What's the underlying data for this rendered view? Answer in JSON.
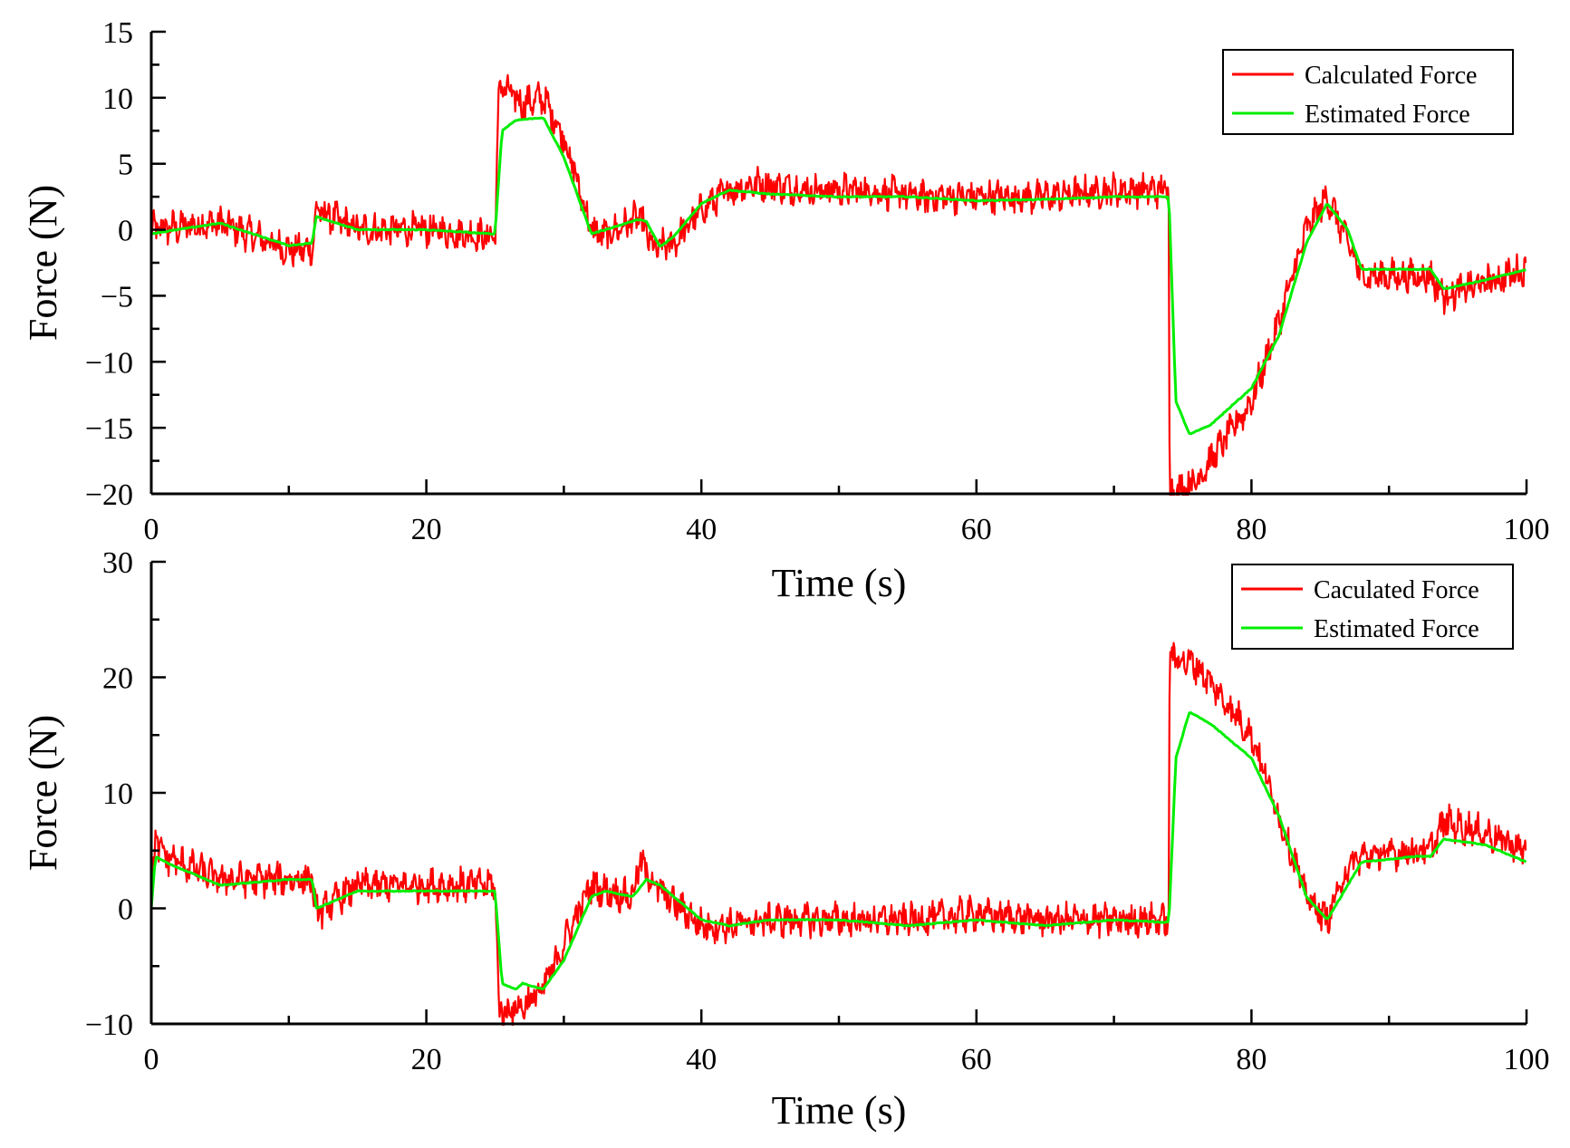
{
  "chart_data": [
    {
      "type": "line",
      "xlabel": "Time (s)",
      "ylabel": "Force (N)",
      "xlim": [
        0,
        100
      ],
      "ylim": [
        -20,
        15
      ],
      "xticks": [
        0,
        20,
        40,
        60,
        80,
        100
      ],
      "yticks": [
        -20,
        -15,
        -10,
        -5,
        0,
        5,
        10,
        15
      ],
      "legend_position": "top-right",
      "series": [
        {
          "name": "Calculated Force",
          "color": "#ff0000",
          "x": [
            0,
            5,
            10,
            11.7,
            12,
            15,
            20,
            24.5,
            25,
            25.3,
            27,
            28.5,
            30,
            32,
            33,
            35.5,
            36.5,
            38,
            40,
            42,
            44,
            48,
            52,
            56,
            60,
            65,
            70,
            73.5,
            74,
            74.05,
            76,
            78,
            80,
            82,
            84,
            85.5,
            87,
            88,
            92,
            93,
            94,
            97,
            100
          ],
          "values": [
            0,
            0.5,
            -1.5,
            -1.5,
            1.5,
            0,
            0,
            -0.5,
            -0.5,
            11,
            9.5,
            10,
            7,
            0,
            -0.5,
            1,
            -1.5,
            -1,
            1.5,
            3,
            3.5,
            3,
            3,
            2.5,
            2.5,
            2.5,
            3,
            3,
            3,
            -20,
            -19,
            -16,
            -13,
            -7,
            0,
            2.5,
            -1,
            -3.5,
            -3.5,
            -3.5,
            -5,
            -4,
            -3
          ]
        },
        {
          "name": "Estimated Force",
          "color": "#00ee00",
          "x": [
            0,
            5,
            10,
            11.7,
            12,
            15,
            20,
            24.5,
            25,
            25.5,
            26.5,
            28.5,
            30,
            32,
            33,
            35.5,
            36,
            37,
            38,
            40,
            42,
            45,
            50,
            55,
            60,
            65,
            70,
            73.5,
            74,
            74.5,
            75.5,
            77,
            80,
            82,
            84,
            85.5,
            87,
            88,
            92,
            93,
            94,
            97,
            100
          ],
          "values": [
            -0.3,
            0.5,
            -1.2,
            -1,
            1,
            0,
            0,
            -0.3,
            -0.3,
            7.5,
            8.3,
            8.5,
            5.5,
            -0.3,
            0,
            0.8,
            0.6,
            -1.3,
            -0.5,
            2,
            3,
            2.7,
            2.5,
            2.5,
            2.2,
            2.3,
            2.5,
            2.5,
            2.5,
            -13,
            -15.5,
            -14.8,
            -12,
            -8,
            -1,
            2,
            0,
            -3,
            -3,
            -3,
            -4.5,
            -3.8,
            -3
          ]
        }
      ]
    },
    {
      "type": "line",
      "xlabel": "Time (s)",
      "ylabel": "Force (N)",
      "xlim": [
        0,
        100
      ],
      "ylim": [
        -10,
        30
      ],
      "xticks": [
        0,
        20,
        40,
        60,
        80,
        100
      ],
      "yticks": [
        -10,
        0,
        10,
        20,
        30
      ],
      "legend_position": "top-right",
      "series": [
        {
          "name": "Caculated Force",
          "color": "#ff0000",
          "x": [
            0,
            0.3,
            1,
            5,
            10,
            11.7,
            12,
            15,
            20,
            24.5,
            25,
            25.3,
            27,
            28.5,
            30,
            32,
            33,
            35,
            35.5,
            37,
            40,
            42,
            45,
            50,
            55,
            60,
            65,
            70,
            73.5,
            74,
            74.05,
            76,
            78,
            80,
            82,
            84,
            85.5,
            87,
            88,
            92,
            93,
            94,
            97,
            100
          ],
          "values": [
            0,
            6,
            4.5,
            2.5,
            2.5,
            2.5,
            -0.5,
            2,
            2,
            2,
            2,
            -9,
            -8.5,
            -7,
            -3,
            2,
            1.5,
            1,
            4,
            1.5,
            -1.5,
            -1.5,
            -1,
            -1,
            -1,
            -0.5,
            -1,
            -1,
            -1,
            -1,
            22,
            21,
            18,
            15,
            8,
            1,
            -1,
            3.5,
            4.5,
            5,
            5,
            7.5,
            6.5,
            5
          ]
        },
        {
          "name": "Estimated Force",
          "color": "#00ee00",
          "x": [
            0,
            0.3,
            1,
            5,
            10,
            11.7,
            12,
            15,
            20,
            24.5,
            25,
            25.5,
            26.5,
            27,
            28.5,
            30,
            32,
            33,
            35,
            36,
            37,
            40,
            42,
            45,
            50,
            55,
            60,
            65,
            70,
            73.5,
            74,
            74.5,
            75.5,
            77,
            80,
            82,
            84,
            85.5,
            87,
            88,
            92,
            93,
            94,
            97,
            100
          ],
          "values": [
            0,
            4.5,
            4,
            2,
            2.5,
            2.5,
            0,
            1.5,
            1.5,
            1.5,
            1.5,
            -6.5,
            -7,
            -6.5,
            -7,
            -4.5,
            1,
            1.5,
            1,
            2.5,
            2,
            -1,
            -1.5,
            -1,
            -1,
            -1.5,
            -1,
            -1.5,
            -1,
            -1.2,
            -1.2,
            13,
            17,
            16,
            13,
            8,
            1,
            -1,
            2,
            4,
            4.5,
            4.5,
            6,
            5.5,
            4
          ]
        }
      ]
    }
  ]
}
